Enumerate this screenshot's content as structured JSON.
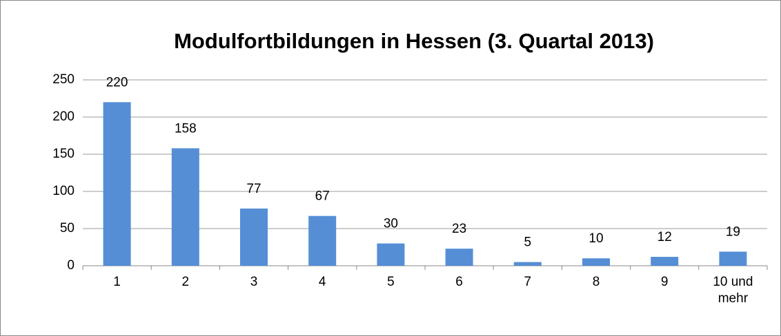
{
  "chart_data": {
    "type": "bar",
    "title": "Modulfortbildungen in Hessen (3. Quartal 2013)",
    "categories": [
      "1",
      "2",
      "3",
      "4",
      "5",
      "6",
      "7",
      "8",
      "9",
      "10 und mehr"
    ],
    "values": [
      220,
      158,
      77,
      67,
      30,
      23,
      5,
      10,
      12,
      19
    ],
    "color": "#558ed5",
    "ylim": [
      0,
      250
    ],
    "yticks": [
      0,
      50,
      100,
      150,
      200,
      250
    ],
    "grid": true
  }
}
